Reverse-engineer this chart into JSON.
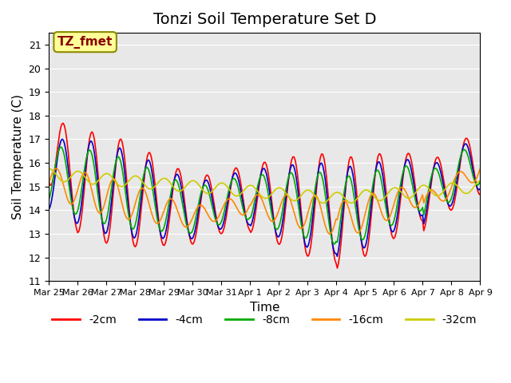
{
  "title": "Tonzi Soil Temperature Set D",
  "xlabel": "Time",
  "ylabel": "Soil Temperature (C)",
  "ylim": [
    11.0,
    21.5
  ],
  "yticks": [
    11.0,
    12.0,
    13.0,
    14.0,
    15.0,
    16.0,
    17.0,
    18.0,
    19.0,
    20.0,
    21.0
  ],
  "xlabels": [
    "Mar 25",
    "Mar 26",
    "Mar 27",
    "Mar 28",
    "Mar 29",
    "Mar 30",
    "Mar 31",
    "Apr 1",
    "Apr 2",
    "Apr 3",
    "Apr 4",
    "Apr 5",
    "Apr 6",
    "Apr 7",
    "Apr 8",
    "Apr 9"
  ],
  "annotation_text": "TZ_fmet",
  "annotation_color": "#8B0000",
  "annotation_bg": "#FFFF99",
  "line_colors": {
    "-2cm": "#FF0000",
    "-4cm": "#0000CC",
    "-8cm": "#00AA00",
    "-16cm": "#FF8800",
    "-32cm": "#CCCC00"
  },
  "legend_labels": [
    "-2cm",
    "-4cm",
    "-8cm",
    "-16cm",
    "-32cm"
  ],
  "background_color": "#E8E8E8",
  "grid_color": "#FFFFFF",
  "title_fontsize": 14,
  "axis_fontsize": 11
}
